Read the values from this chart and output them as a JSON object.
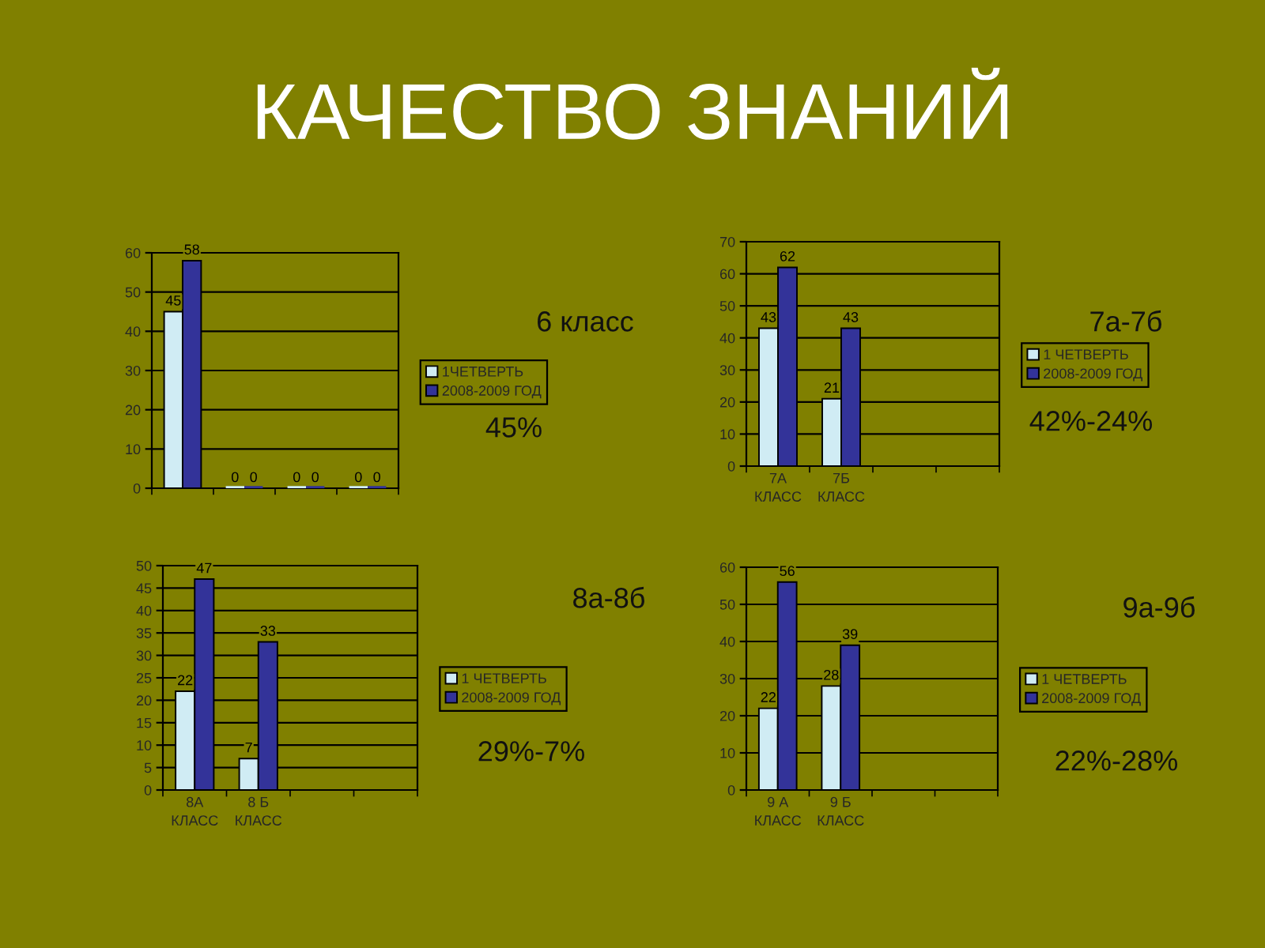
{
  "chart_data": [
    {
      "type": "bar",
      "title": "КАЧЕСТВО ЗНАНИЙ",
      "categories": [
        null,
        null,
        null,
        null
      ],
      "series": [
        {
          "name": "1ЧЕТВЕРТЬ",
          "color": "#d0ecf4",
          "values": [
            45,
            0,
            0,
            0
          ]
        },
        {
          "name": "2008-2009 ГОД",
          "color": "#333399",
          "values": [
            58,
            0,
            0,
            0
          ]
        }
      ],
      "ylim": [
        0,
        60
      ],
      "yticks": [
        0,
        10,
        20,
        30,
        40,
        50,
        60
      ],
      "grid": "y",
      "legend": "right",
      "data_labels": true,
      "annotations": [
        "6 класс",
        "45%"
      ]
    },
    {
      "type": "bar",
      "categories": [
        "7А\nКЛАСС",
        "7Б\nКЛАСС",
        null,
        null
      ],
      "series": [
        {
          "name": "1 ЧЕТВЕРТЬ",
          "color": "#d0ecf4",
          "values": [
            43,
            21,
            null,
            null
          ]
        },
        {
          "name": "2008-2009 ГОД",
          "color": "#333399",
          "values": [
            62,
            43,
            null,
            null
          ]
        }
      ],
      "ylim": [
        0,
        70
      ],
      "yticks": [
        0,
        10,
        20,
        30,
        40,
        50,
        60,
        70
      ],
      "grid": "y",
      "legend": "right",
      "data_labels": true,
      "annotations": [
        "7а-7б",
        "42%-24%"
      ]
    },
    {
      "type": "bar",
      "categories": [
        "8А\nКЛАСС",
        "8 Б\nКЛАСС",
        null,
        null
      ],
      "series": [
        {
          "name": "1 ЧЕТВЕРТЬ",
          "color": "#d0ecf4",
          "values": [
            22,
            7,
            null,
            null
          ]
        },
        {
          "name": "2008-2009 ГОД",
          "color": "#333399",
          "values": [
            47,
            33,
            null,
            null
          ]
        }
      ],
      "ylim": [
        0,
        50
      ],
      "yticks": [
        0,
        5,
        10,
        15,
        20,
        25,
        30,
        35,
        40,
        45,
        50
      ],
      "grid": "y",
      "legend": "right",
      "data_labels": true,
      "annotations": [
        "8а-8б",
        "29%-7%"
      ]
    },
    {
      "type": "bar",
      "categories": [
        "9 А\nКЛАСС",
        "9 Б\nКЛАСС",
        null,
        null
      ],
      "series": [
        {
          "name": "1 ЧЕТВЕРТЬ",
          "color": "#d0ecf4",
          "values": [
            22,
            28,
            null,
            null
          ]
        },
        {
          "name": "2008-2009 ГОД",
          "color": "#333399",
          "values": [
            56,
            39,
            null,
            null
          ]
        }
      ],
      "ylim": [
        0,
        60
      ],
      "yticks": [
        0,
        10,
        20,
        30,
        40,
        50,
        60
      ],
      "grid": "y",
      "legend": "right",
      "data_labels": true,
      "annotations": [
        "9а-9б",
        "22%-28%"
      ]
    }
  ]
}
